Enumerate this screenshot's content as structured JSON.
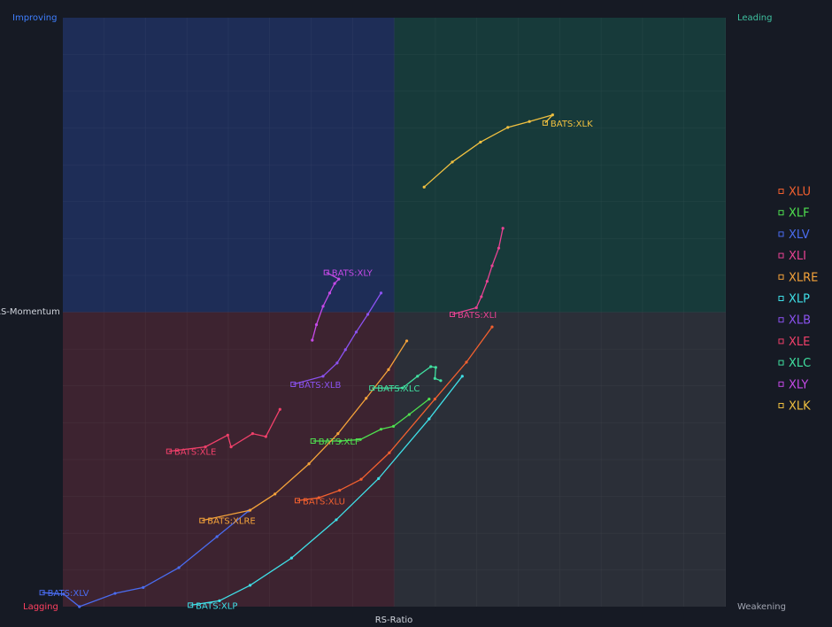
{
  "chart_data": {
    "type": "line",
    "x_label": "RS-Ratio",
    "y_label": "RS-Momentum",
    "quadrants": {
      "improving": "Improving",
      "leading": "Leading",
      "lagging": "Lagging",
      "weakening": "Weakening"
    },
    "xlim": [
      96,
      104
    ],
    "ylim": [
      96,
      104
    ],
    "series": [
      {
        "name": "XLU",
        "label": "BATS:XLU",
        "color": "#f2602f",
        "x": [
          101.18,
          100.87,
          100.49,
          99.94,
          99.6,
          99.34,
          99.09,
          98.83
        ],
        "y": [
          99.8,
          99.32,
          98.82,
          98.09,
          97.73,
          97.58,
          97.48,
          97.44
        ]
      },
      {
        "name": "XLF",
        "label": "BATS:XLF",
        "color": "#4fe04f",
        "x": [
          100.42,
          100.18,
          99.99,
          99.84,
          99.59,
          99.35,
          99.02
        ],
        "y": [
          98.82,
          98.61,
          98.45,
          98.41,
          98.27,
          98.25,
          98.25
        ]
      },
      {
        "name": "XLV",
        "label": "BATS:XLV",
        "color": "#4a6cf0",
        "x": [
          98.24,
          97.86,
          97.4,
          96.97,
          96.63,
          96.2,
          96.01,
          95.75
        ],
        "y": [
          97.3,
          96.95,
          96.53,
          96.26,
          96.18,
          96.0,
          96.17,
          96.19
        ]
      },
      {
        "name": "XLI",
        "label": "BATS:XLI",
        "color": "#e84393",
        "x": [
          101.31,
          101.26,
          101.18,
          101.12,
          101.05,
          100.99,
          100.7
        ],
        "y": [
          101.14,
          100.87,
          100.63,
          100.42,
          100.21,
          100.06,
          99.97
        ]
      },
      {
        "name": "XLRE",
        "label": "BATS:XLRE",
        "color": "#f5a33a",
        "x": [
          100.15,
          99.93,
          99.66,
          99.32,
          98.97,
          98.56,
          98.26,
          97.68
        ],
        "y": [
          99.61,
          99.22,
          98.83,
          98.35,
          97.94,
          97.53,
          97.31,
          97.17
        ]
      },
      {
        "name": "XLP",
        "label": "BATS:XLP",
        "color": "#3fe0e8",
        "x": [
          100.82,
          100.42,
          99.81,
          99.3,
          98.76,
          98.26,
          97.89,
          97.54
        ],
        "y": [
          99.13,
          98.55,
          97.74,
          97.18,
          96.66,
          96.29,
          96.08,
          96.02
        ]
      },
      {
        "name": "XLB",
        "label": "BATS:XLB",
        "color": "#8b52f0",
        "x": [
          99.84,
          99.68,
          99.54,
          99.41,
          99.31,
          99.14,
          98.78
        ],
        "y": [
          100.26,
          99.97,
          99.73,
          99.49,
          99.31,
          99.13,
          99.02
        ]
      },
      {
        "name": "XLE",
        "label": "BATS:XLE",
        "color": "#f0406a",
        "x": [
          98.62,
          98.45,
          98.29,
          98.03,
          97.99,
          97.72,
          97.28
        ],
        "y": [
          98.68,
          98.31,
          98.35,
          98.17,
          98.33,
          98.17,
          98.11
        ]
      },
      {
        "name": "XLC",
        "label": "BATS:XLC",
        "color": "#40e0a0",
        "x": [
          100.56,
          100.49,
          100.5,
          100.44,
          100.28,
          100.1,
          99.73
        ],
        "y": [
          99.07,
          99.1,
          99.25,
          99.26,
          99.13,
          98.97,
          98.97
        ]
      },
      {
        "name": "XLY",
        "label": "BATS:XLY",
        "color": "#c64ae8",
        "x": [
          99.01,
          99.06,
          99.14,
          99.22,
          99.28,
          99.33,
          99.18
        ],
        "y": [
          99.62,
          99.83,
          100.08,
          100.26,
          100.39,
          100.45,
          100.54
        ]
      },
      {
        "name": "XLK",
        "label": "BATS:XLK",
        "color": "#f0c040",
        "x": [
          100.36,
          100.7,
          101.04,
          101.37,
          101.63,
          101.91,
          101.82
        ],
        "y": [
          101.7,
          102.04,
          102.31,
          102.51,
          102.59,
          102.68,
          102.57
        ]
      }
    ]
  }
}
